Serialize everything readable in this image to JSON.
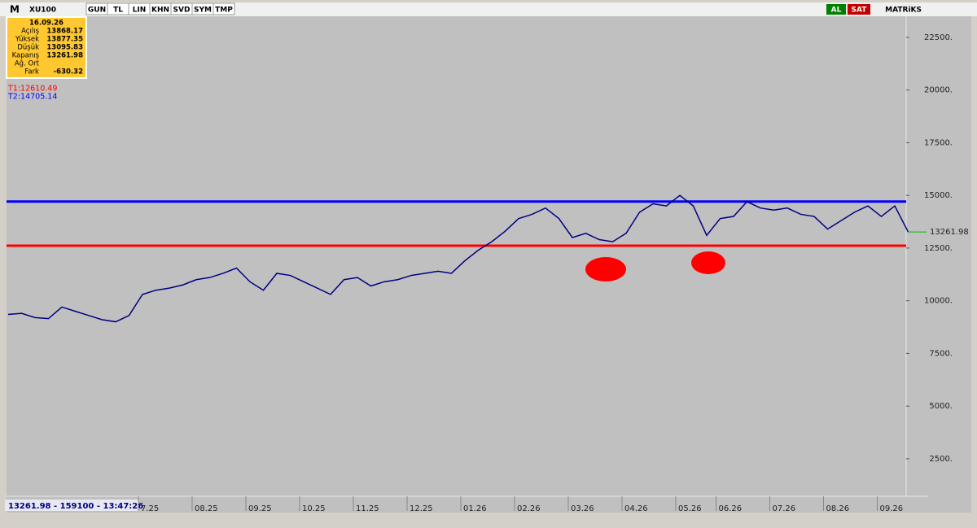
{
  "toolbar": {
    "logo": "M",
    "symbol": "XU100",
    "buttons": [
      "GUN",
      "TL",
      "LIN",
      "KHN",
      "SVD",
      "SYM",
      "TMP"
    ],
    "buy": "AL",
    "sell": "SAT",
    "brand": "MATRiKS"
  },
  "info_box": {
    "date": "16.09.26",
    "rows": [
      [
        "Açılış",
        "13868.17"
      ],
      [
        "Yüksek",
        "13877.35"
      ],
      [
        "Düşük",
        "13095.83"
      ],
      [
        "Kapanış",
        "13261.98"
      ],
      [
        "Ağ. Ort"
      ],
      [
        "Fark",
        "-630.32"
      ]
    ]
  },
  "status": "13261.98 - 159100 - 13:47:26",
  "chart_data": {
    "type": "line",
    "color": "#000080",
    "categories": [
      null,
      null,
      null,
      null,
      null,
      null,
      null,
      null,
      null,
      null,
      "7.25",
      null,
      null,
      null,
      "08.25",
      null,
      null,
      null,
      "09.25",
      null,
      null,
      null,
      "10.25",
      null,
      null,
      null,
      "11.25",
      null,
      null,
      null,
      "12.25",
      null,
      null,
      null,
      "01.26",
      null,
      null,
      null,
      "02.26",
      null,
      null,
      null,
      "03.26",
      null,
      null,
      null,
      "04.26",
      null,
      null,
      null,
      "05.26",
      null,
      null,
      "06.26",
      null,
      null,
      null,
      "07.26",
      null,
      null,
      null,
      "08.26",
      null,
      null,
      null,
      "09.26",
      null,
      null
    ],
    "values": [
      9350,
      9400,
      9200,
      9150,
      9700,
      9500,
      9300,
      9100,
      9000,
      9300,
      10300,
      10500,
      10600,
      10750,
      11000,
      11100,
      11300,
      11550,
      10900,
      10500,
      11300,
      11200,
      10900,
      10600,
      10300,
      11000,
      11100,
      10700,
      10900,
      11000,
      11200,
      11300,
      11400,
      11300,
      11900,
      12400,
      12800,
      13300,
      13900,
      14100,
      14400,
      13900,
      13000,
      13200,
      12900,
      12800,
      13200,
      14200,
      14600,
      14500,
      15000,
      14500,
      13100,
      13900,
      14000,
      14700,
      14400,
      14300,
      14400,
      14100,
      14000,
      13400,
      13800,
      14200,
      14500,
      14000,
      14500,
      13261.98
    ],
    "last_label": "13261.98",
    "ylim": [
      720,
      23500
    ],
    "yticks": [
      {
        "value": 2500,
        "label": "2500."
      },
      {
        "value": 5000,
        "label": "5000."
      },
      {
        "value": 7500,
        "label": "7500."
      },
      {
        "value": 10000,
        "label": "10000."
      },
      {
        "value": 12500,
        "label": "12500."
      },
      {
        "value": 15000,
        "label": "15000."
      },
      {
        "value": 17500,
        "label": "17500."
      },
      {
        "value": 20000,
        "label": "20000."
      },
      {
        "value": 22500,
        "label": "22500."
      }
    ],
    "reference_lines": [
      {
        "label": "T1:12610.49",
        "value": 12610.49,
        "color": "#ff0000"
      },
      {
        "label": "T2:14705.14",
        "value": 14705.14,
        "color": "#0000ff"
      }
    ]
  }
}
